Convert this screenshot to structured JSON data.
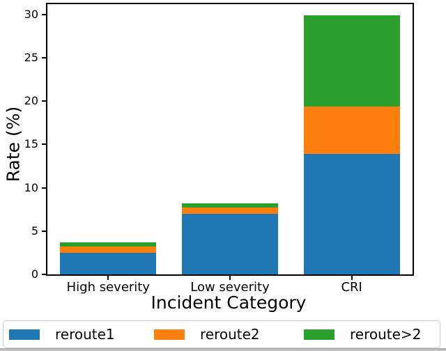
{
  "chart_data": {
    "type": "bar",
    "stacked": true,
    "orientation": "vertical",
    "categories": [
      "High severity",
      "Low severity",
      "CRI"
    ],
    "series": [
      {
        "name": "reroute1",
        "color": "#1f77b4",
        "values": [
          2.5,
          7.0,
          13.9
        ]
      },
      {
        "name": "reroute2",
        "color": "#ff7f0e",
        "values": [
          0.7,
          0.7,
          5.5
        ]
      },
      {
        "name": "reroute>2",
        "color": "#2ca02c",
        "values": [
          0.5,
          0.5,
          10.5
        ]
      }
    ],
    "totals": [
      3.7,
      8.2,
      29.9
    ],
    "title": "",
    "xlabel": "Incident Category",
    "ylabel": "Rate (%)",
    "yticks": [
      0,
      5,
      10,
      15,
      20,
      25,
      30
    ],
    "ylim": [
      0,
      31.2
    ],
    "grid": false,
    "legend_position": "bottom",
    "legend_labels": [
      "reroute1",
      "reroute2",
      "reroute>2"
    ],
    "axis_color": "#000000",
    "background_color": "#ffffff",
    "legend_border_color": "#cccccc"
  }
}
